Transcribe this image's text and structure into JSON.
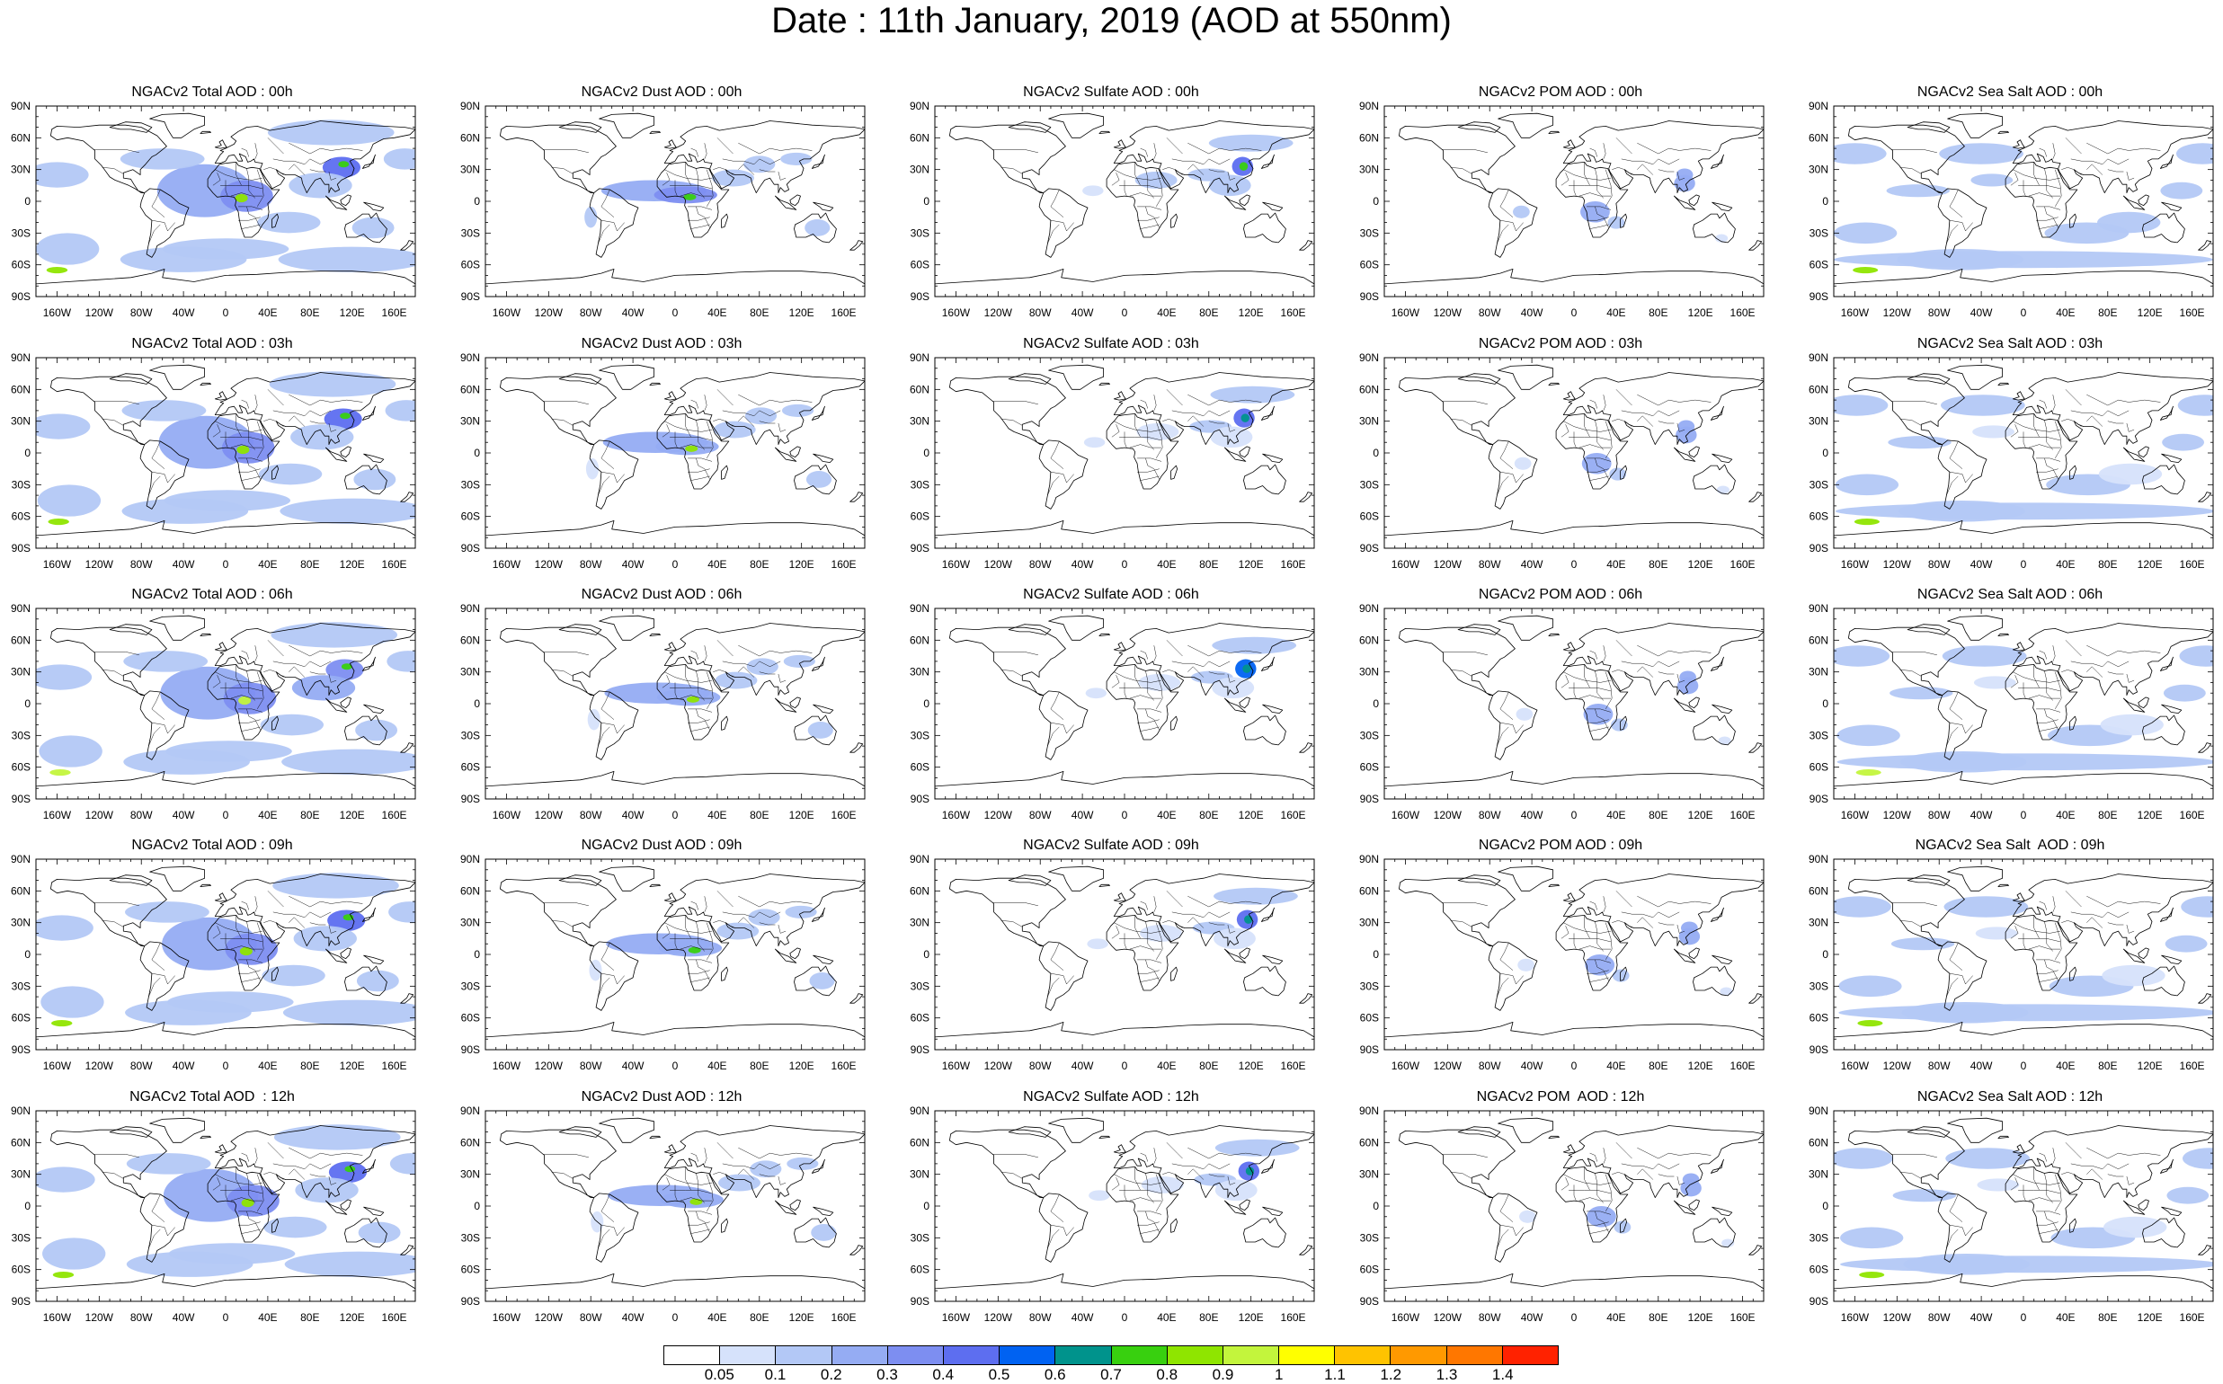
{
  "title": "Date : 11th January, 2019 (AOD at 550nm)",
  "lat_labels": [
    "90N",
    "60N",
    "30N",
    "0",
    "30S",
    "60S",
    "90S"
  ],
  "lon_labels": [
    "160W",
    "120W",
    "80W",
    "40W",
    "0",
    "40E",
    "80E",
    "120E",
    "160E"
  ],
  "panels": [
    [
      "NGACv2 Total AOD : 00h",
      "NGACv2 Dust AOD : 00h",
      "NGACv2 Sulfate AOD : 00h",
      "NGACv2 POM AOD : 00h",
      "NGACv2 Sea Salt AOD : 00h"
    ],
    [
      "NGACv2 Total AOD : 03h",
      "NGACv2 Dust AOD : 03h",
      "NGACv2 Sulfate AOD : 03h",
      "NGACv2 POM AOD : 03h",
      "NGACv2 Sea Salt AOD : 03h"
    ],
    [
      "NGACv2 Total AOD : 06h",
      "NGACv2 Dust AOD : 06h",
      "NGACv2 Sulfate AOD : 06h",
      "NGACv2 POM AOD : 06h",
      "NGACv2 Sea Salt AOD : 06h"
    ],
    [
      "NGACv2 Total AOD : 09h",
      "NGACv2 Dust AOD : 09h",
      "NGACv2 Sulfate AOD : 09h",
      "NGACv2 POM AOD : 09h",
      "NGACv2 Sea Salt  AOD : 09h"
    ],
    [
      "NGACv2 Total AOD  : 12h",
      "NGACv2 Dust AOD : 12h",
      "NGACv2 Sulfate AOD : 12h",
      "NGACv2 POM  AOD : 12h",
      "NGACv2 Sea Salt AOD : 12h"
    ]
  ],
  "colorbar": {
    "labels": [
      "0.05",
      "0.1",
      "0.2",
      "0.3",
      "0.4",
      "0.5",
      "0.6",
      "0.7",
      "0.8",
      "0.9",
      "1",
      "1.1",
      "1.2",
      "1.3",
      "1.4"
    ],
    "colors": [
      "#ffffff",
      "#d6e2fb",
      "#b3c8f6",
      "#95acf3",
      "#7d8ef1",
      "#5d6ef0",
      "#0062f2",
      "#00938c",
      "#38d00f",
      "#8fe500",
      "#c3f53c",
      "#ffff00",
      "#ffc300",
      "#ff9900",
      "#ff7700",
      "#ff2200"
    ]
  },
  "aerosol_species": [
    {
      "name": "Total",
      "blobs": [
        [
          -20,
          10,
          45,
          25,
          0.22
        ],
        [
          20,
          5,
          25,
          15,
          0.35
        ],
        [
          15,
          3,
          6,
          4,
          0.8
        ],
        [
          110,
          32,
          18,
          10,
          0.42
        ],
        [
          112,
          35,
          5,
          3,
          0.7
        ],
        [
          -150,
          -45,
          30,
          15,
          0.16
        ],
        [
          -160,
          -65,
          10,
          3,
          0.8
        ],
        [
          0,
          -45,
          60,
          10,
          0.14
        ],
        [
          -40,
          -55,
          60,
          12,
          0.12
        ],
        [
          120,
          -55,
          70,
          12,
          0.12
        ],
        [
          -160,
          25,
          30,
          12,
          0.14
        ],
        [
          -60,
          40,
          40,
          10,
          0.12
        ],
        [
          170,
          40,
          20,
          10,
          0.14
        ],
        [
          100,
          65,
          60,
          12,
          0.12
        ],
        [
          90,
          15,
          30,
          12,
          0.18
        ],
        [
          140,
          -25,
          20,
          10,
          0.13
        ],
        [
          60,
          -20,
          30,
          10,
          0.1
        ]
      ]
    },
    {
      "name": "Dust",
      "blobs": [
        [
          -20,
          10,
          50,
          10,
          0.2
        ],
        [
          10,
          6,
          30,
          8,
          0.3
        ],
        [
          14,
          4,
          6,
          3,
          0.75
        ],
        [
          55,
          22,
          20,
          8,
          0.15
        ],
        [
          80,
          35,
          15,
          8,
          0.14
        ],
        [
          135,
          -25,
          12,
          8,
          0.16
        ],
        [
          115,
          40,
          15,
          6,
          0.12
        ],
        [
          -80,
          -15,
          6,
          10,
          0.1
        ]
      ]
    },
    {
      "name": "Sulfate",
      "blobs": [
        [
          112,
          33,
          10,
          9,
          0.45
        ],
        [
          113,
          33,
          4,
          4,
          0.7
        ],
        [
          80,
          25,
          20,
          6,
          0.12
        ],
        [
          30,
          20,
          20,
          8,
          0.1
        ],
        [
          120,
          55,
          40,
          8,
          0.1
        ],
        [
          100,
          15,
          20,
          10,
          0.1
        ],
        [
          -30,
          10,
          10,
          5,
          0.07
        ]
      ]
    },
    {
      "name": "POM",
      "blobs": [
        [
          20,
          -10,
          14,
          10,
          0.22
        ],
        [
          105,
          17,
          10,
          8,
          0.25
        ],
        [
          105,
          25,
          8,
          6,
          0.2
        ],
        [
          -50,
          -10,
          8,
          6,
          0.1
        ],
        [
          40,
          -20,
          8,
          6,
          0.1
        ],
        [
          140,
          -35,
          6,
          4,
          0.08
        ]
      ]
    },
    {
      "name": "Sea Salt",
      "blobs": [
        [
          0,
          -55,
          180,
          8,
          0.15
        ],
        [
          -60,
          -55,
          60,
          10,
          0.18
        ],
        [
          -150,
          -65,
          12,
          3,
          0.8
        ],
        [
          -160,
          45,
          30,
          10,
          0.14
        ],
        [
          -40,
          45,
          40,
          10,
          0.15
        ],
        [
          170,
          45,
          25,
          10,
          0.14
        ],
        [
          -150,
          -30,
          30,
          10,
          0.12
        ],
        [
          60,
          -30,
          40,
          10,
          0.12
        ],
        [
          -100,
          10,
          30,
          6,
          0.1
        ],
        [
          -30,
          20,
          20,
          6,
          0.1
        ],
        [
          150,
          10,
          20,
          8,
          0.1
        ],
        [
          100,
          -20,
          30,
          10,
          0.1
        ]
      ]
    }
  ]
}
